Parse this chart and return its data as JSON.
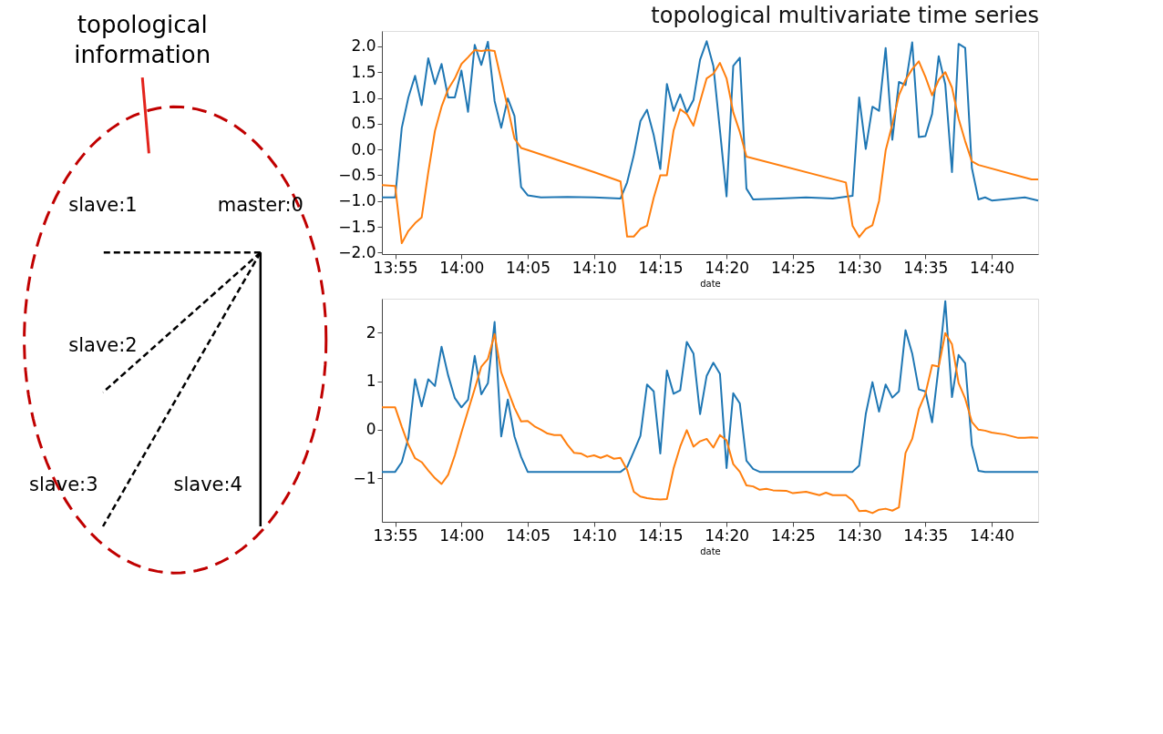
{
  "chart_data": [
    {
      "type": "other",
      "annotations": [
        "topological information",
        "slave:1",
        "master:0",
        "slave:2",
        "slave:3",
        "slave:4"
      ]
    },
    {
      "type": "line",
      "title": "topological multivariate time series",
      "xlabel": "date",
      "xlim": [
        13.9,
        14.725
      ],
      "xticks": [
        {
          "value": 13.9167,
          "label": "13:55"
        },
        {
          "value": 14.0,
          "label": "14:00"
        },
        {
          "value": 14.0833,
          "label": "14:05"
        },
        {
          "value": 14.1667,
          "label": "14:10"
        },
        {
          "value": 14.25,
          "label": "14:15"
        },
        {
          "value": 14.3333,
          "label": "14:20"
        },
        {
          "value": 14.4167,
          "label": "14:25"
        },
        {
          "value": 14.5,
          "label": "14:30"
        },
        {
          "value": 14.5833,
          "label": "14:35"
        },
        {
          "value": 14.6667,
          "label": "14:40"
        }
      ],
      "ylim": [
        -2.03,
        2.3
      ],
      "yticks": [
        {
          "value": -2.0,
          "label": "−2.0"
        },
        {
          "value": -1.5,
          "label": "−1.5"
        },
        {
          "value": -1.0,
          "label": "−1.0"
        },
        {
          "value": -0.5,
          "label": "−0.5"
        },
        {
          "value": 0.0,
          "label": "0.0"
        },
        {
          "value": 0.5,
          "label": "0.5"
        },
        {
          "value": 1.0,
          "label": "1.0"
        },
        {
          "value": 1.5,
          "label": "1.5"
        },
        {
          "value": 2.0,
          "label": "2.0"
        }
      ],
      "series": [
        {
          "color": "#1f77b4",
          "x": [
            13.9,
            13.9167,
            13.925,
            13.9333,
            13.9417,
            13.95,
            13.9583,
            13.9667,
            13.975,
            13.9833,
            13.9917,
            14.0,
            14.0083,
            14.0167,
            14.025,
            14.0333,
            14.0417,
            14.05,
            14.0583,
            14.0667,
            14.075,
            14.0833,
            14.1,
            14.1333,
            14.1667,
            14.2,
            14.2083,
            14.2167,
            14.225,
            14.2333,
            14.2417,
            14.25,
            14.2583,
            14.2667,
            14.275,
            14.2833,
            14.2917,
            14.3,
            14.3083,
            14.3167,
            14.325,
            14.3333,
            14.3417,
            14.35,
            14.3583,
            14.3667,
            14.4,
            14.4333,
            14.4667,
            14.4917,
            14.5,
            14.5083,
            14.5167,
            14.525,
            14.5333,
            14.5417,
            14.55,
            14.5583,
            14.5667,
            14.575,
            14.5833,
            14.5917,
            14.6,
            14.6083,
            14.6167,
            14.625,
            14.6333,
            14.6417,
            14.65,
            14.6583,
            14.6667,
            14.7083,
            14.725
          ],
          "values": [
            -0.93,
            -0.93,
            0.42,
            1.01,
            1.43,
            0.86,
            1.77,
            1.27,
            1.66,
            1.01,
            1.01,
            1.53,
            0.73,
            2.03,
            1.64,
            2.09,
            0.94,
            0.42,
            0.99,
            0.65,
            -0.73,
            -0.89,
            -0.93,
            -0.92,
            -0.93,
            -0.95,
            -0.64,
            -0.11,
            0.55,
            0.77,
            0.28,
            -0.38,
            1.27,
            0.75,
            1.07,
            0.72,
            0.96,
            1.74,
            2.1,
            1.62,
            0.37,
            -0.91,
            1.62,
            1.78,
            -0.76,
            -0.97,
            -0.95,
            -0.93,
            -0.95,
            -0.9,
            1.01,
            0.01,
            0.83,
            0.75,
            1.97,
            0.19,
            1.31,
            1.25,
            2.08,
            0.24,
            0.26,
            0.69,
            1.81,
            1.26,
            -0.44,
            2.05,
            1.97,
            -0.36,
            -0.97,
            -0.93,
            -0.99,
            -0.93,
            -0.99
          ]
        },
        {
          "color": "#ff7f0e",
          "x": [
            13.9,
            13.9167,
            13.925,
            13.9333,
            13.9417,
            13.95,
            13.9583,
            13.9667,
            13.975,
            13.9833,
            13.9917,
            14.0,
            14.0083,
            14.0167,
            14.025,
            14.0333,
            14.0417,
            14.05,
            14.0583,
            14.0667,
            14.075,
            14.0833,
            14.1667,
            14.2,
            14.2083,
            14.2167,
            14.225,
            14.2333,
            14.2417,
            14.25,
            14.2583,
            14.2667,
            14.275,
            14.2833,
            14.2917,
            14.3,
            14.3083,
            14.3167,
            14.325,
            14.3333,
            14.3417,
            14.35,
            14.3583,
            14.4833,
            14.4917,
            14.5,
            14.5083,
            14.5167,
            14.525,
            14.5333,
            14.5417,
            14.55,
            14.5583,
            14.5667,
            14.575,
            14.5833,
            14.5917,
            14.6,
            14.6083,
            14.6167,
            14.625,
            14.6333,
            14.6417,
            14.65,
            14.7167,
            14.725
          ],
          "values": [
            -0.69,
            -0.71,
            -1.82,
            -1.58,
            -1.43,
            -1.32,
            -0.44,
            0.36,
            0.83,
            1.17,
            1.38,
            1.66,
            1.79,
            1.93,
            1.91,
            1.93,
            1.91,
            1.35,
            0.81,
            0.21,
            0.03,
            -0.01,
            -0.44,
            -0.62,
            -1.69,
            -1.69,
            -1.54,
            -1.48,
            -0.94,
            -0.5,
            -0.5,
            0.37,
            0.78,
            0.69,
            0.46,
            0.93,
            1.38,
            1.47,
            1.68,
            1.38,
            0.72,
            0.34,
            -0.14,
            -0.64,
            -1.48,
            -1.7,
            -1.54,
            -1.47,
            -1.0,
            -0.02,
            0.49,
            1.05,
            1.35,
            1.56,
            1.71,
            1.41,
            1.05,
            1.35,
            1.5,
            1.2,
            0.6,
            0.16,
            -0.23,
            -0.3,
            -0.58,
            -0.58
          ]
        }
      ]
    },
    {
      "type": "line",
      "xlabel": "date",
      "xlim": [
        13.9,
        14.725
      ],
      "xticks": [
        {
          "value": 13.9167,
          "label": "13:55"
        },
        {
          "value": 14.0,
          "label": "14:00"
        },
        {
          "value": 14.0833,
          "label": "14:05"
        },
        {
          "value": 14.1667,
          "label": "14:10"
        },
        {
          "value": 14.25,
          "label": "14:15"
        },
        {
          "value": 14.3333,
          "label": "14:20"
        },
        {
          "value": 14.4167,
          "label": "14:25"
        },
        {
          "value": 14.5,
          "label": "14:30"
        },
        {
          "value": 14.5833,
          "label": "14:35"
        },
        {
          "value": 14.6667,
          "label": "14:40"
        }
      ],
      "ylim": [
        -1.9,
        2.7
      ],
      "yticks": [
        {
          "value": -1,
          "label": "−1"
        },
        0,
        1,
        2
      ],
      "series": [
        {
          "color": "#1f77b4",
          "x": [
            13.9,
            13.9167,
            13.925,
            13.9333,
            13.9417,
            13.95,
            13.9583,
            13.9667,
            13.975,
            13.9833,
            13.9917,
            14.0,
            14.0083,
            14.0167,
            14.025,
            14.0333,
            14.0417,
            14.05,
            14.0583,
            14.0667,
            14.075,
            14.0833,
            14.2,
            14.2083,
            14.2167,
            14.225,
            14.2333,
            14.2417,
            14.25,
            14.2583,
            14.2667,
            14.275,
            14.2833,
            14.2917,
            14.3,
            14.3083,
            14.3167,
            14.325,
            14.3333,
            14.3417,
            14.35,
            14.3583,
            14.3667,
            14.375,
            14.4917,
            14.5,
            14.5083,
            14.5167,
            14.525,
            14.5333,
            14.5417,
            14.55,
            14.5583,
            14.5667,
            14.575,
            14.5833,
            14.5917,
            14.6,
            14.6083,
            14.6167,
            14.625,
            14.6333,
            14.6417,
            14.65,
            14.6583,
            14.725
          ],
          "values": [
            -0.87,
            -0.87,
            -0.67,
            -0.17,
            1.04,
            0.48,
            1.04,
            0.9,
            1.71,
            1.12,
            0.65,
            0.46,
            0.62,
            1.52,
            0.73,
            0.96,
            2.22,
            -0.14,
            0.62,
            -0.14,
            -0.56,
            -0.87,
            -0.87,
            -0.77,
            -0.45,
            -0.13,
            0.93,
            0.79,
            -0.49,
            1.22,
            0.74,
            0.81,
            1.81,
            1.57,
            0.32,
            1.11,
            1.38,
            1.15,
            -0.79,
            0.75,
            0.54,
            -0.64,
            -0.81,
            -0.87,
            -0.87,
            -0.74,
            0.32,
            0.98,
            0.37,
            0.93,
            0.66,
            0.79,
            2.05,
            1.57,
            0.83,
            0.79,
            0.15,
            1.31,
            2.65,
            0.67,
            1.54,
            1.37,
            -0.32,
            -0.85,
            -0.87,
            -0.87
          ]
        },
        {
          "color": "#ff7f0e",
          "x": [
            13.9,
            13.9167,
            13.925,
            13.9333,
            13.9417,
            13.95,
            13.9583,
            13.9667,
            13.975,
            13.9833,
            13.9917,
            14.0,
            14.0083,
            14.0167,
            14.025,
            14.0333,
            14.0417,
            14.05,
            14.0583,
            14.0667,
            14.075,
            14.0833,
            14.0917,
            14.1,
            14.1083,
            14.1167,
            14.125,
            14.1333,
            14.1417,
            14.15,
            14.1583,
            14.1667,
            14.175,
            14.1833,
            14.1917,
            14.2,
            14.2083,
            14.2167,
            14.225,
            14.2333,
            14.2417,
            14.25,
            14.2583,
            14.2667,
            14.275,
            14.2833,
            14.2917,
            14.3,
            14.3083,
            14.3167,
            14.325,
            14.3333,
            14.3417,
            14.35,
            14.3583,
            14.3667,
            14.375,
            14.3833,
            14.3917,
            14.4083,
            14.4167,
            14.4333,
            14.45,
            14.4583,
            14.4667,
            14.4833,
            14.4917,
            14.5,
            14.5083,
            14.5167,
            14.525,
            14.5333,
            14.5417,
            14.55,
            14.5583,
            14.5667,
            14.575,
            14.5833,
            14.5917,
            14.6,
            14.6083,
            14.6167,
            14.625,
            14.6333,
            14.6417,
            14.65,
            14.6583,
            14.6667,
            14.6833,
            14.7,
            14.7083,
            14.7167,
            14.725
          ],
          "values": [
            0.46,
            0.46,
            0.06,
            -0.31,
            -0.59,
            -0.67,
            -0.84,
            -1.0,
            -1.12,
            -0.93,
            -0.53,
            -0.06,
            0.39,
            0.84,
            1.3,
            1.46,
            1.97,
            1.18,
            0.81,
            0.45,
            0.17,
            0.18,
            0.07,
            0.0,
            -0.08,
            -0.11,
            -0.11,
            -0.31,
            -0.48,
            -0.49,
            -0.56,
            -0.53,
            -0.58,
            -0.53,
            -0.6,
            -0.58,
            -0.83,
            -1.28,
            -1.38,
            -1.41,
            -1.43,
            -1.44,
            -1.43,
            -0.8,
            -0.35,
            -0.01,
            -0.35,
            -0.24,
            -0.19,
            -0.37,
            -0.11,
            -0.22,
            -0.71,
            -0.87,
            -1.15,
            -1.17,
            -1.24,
            -1.22,
            -1.25,
            -1.26,
            -1.31,
            -1.28,
            -1.35,
            -1.3,
            -1.35,
            -1.35,
            -1.46,
            -1.68,
            -1.67,
            -1.72,
            -1.65,
            -1.63,
            -1.67,
            -1.6,
            -0.48,
            -0.19,
            0.42,
            0.74,
            1.33,
            1.3,
            1.99,
            1.76,
            0.96,
            0.64,
            0.16,
            0.0,
            -0.02,
            -0.06,
            -0.1,
            -0.17,
            -0.17,
            -0.16,
            -0.17
          ]
        }
      ]
    }
  ]
}
